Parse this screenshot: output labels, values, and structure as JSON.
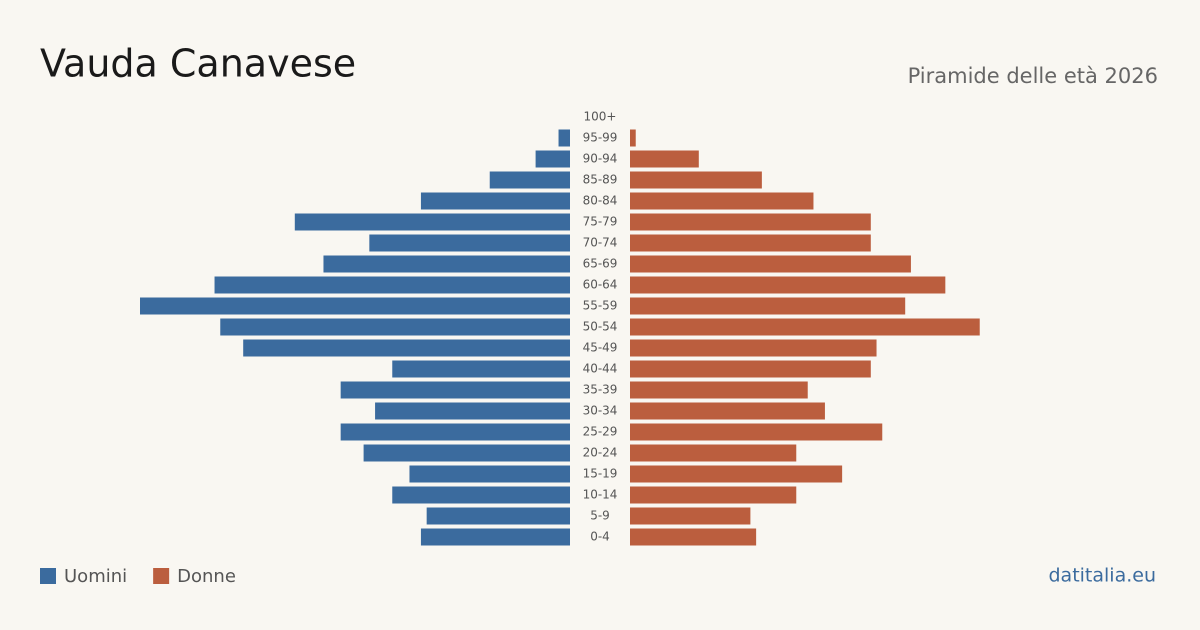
{
  "chart_data": {
    "type": "pyramid",
    "title": "Vauda Canavese",
    "subtitle": "Piramide delle età 2026",
    "source": "datitalia.eu",
    "categories": [
      "100+",
      "95-99",
      "90-94",
      "85-89",
      "80-84",
      "75-79",
      "70-74",
      "65-69",
      "60-64",
      "55-59",
      "50-54",
      "45-49",
      "40-44",
      "35-39",
      "30-34",
      "25-29",
      "20-24",
      "15-19",
      "10-14",
      "5-9",
      "0-4"
    ],
    "series": [
      {
        "name": "Uomini",
        "color": "#3b6b9e",
        "values": [
          0,
          2,
          6,
          14,
          26,
          48,
          35,
          43,
          62,
          75,
          61,
          57,
          31,
          40,
          34,
          40,
          36,
          28,
          31,
          25,
          26
        ]
      },
      {
        "name": "Donne",
        "color": "#bb5e3e",
        "values": [
          0,
          1,
          12,
          23,
          32,
          42,
          42,
          49,
          55,
          48,
          61,
          43,
          42,
          31,
          34,
          44,
          29,
          37,
          29,
          21,
          22
        ]
      }
    ]
  }
}
